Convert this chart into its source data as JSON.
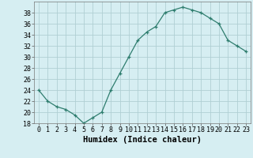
{
  "x": [
    0,
    1,
    2,
    3,
    4,
    5,
    6,
    7,
    8,
    9,
    10,
    11,
    12,
    13,
    14,
    15,
    16,
    17,
    18,
    19,
    20,
    21,
    22,
    23
  ],
  "y": [
    24,
    22,
    21,
    20.5,
    19.5,
    18,
    19,
    20,
    24,
    27,
    30,
    33,
    34.5,
    35.5,
    38,
    38.5,
    39,
    38.5,
    38,
    37,
    36,
    33,
    32,
    31
  ],
  "line_color": "#2e7d6e",
  "marker": "+",
  "bg_color": "#d6eef2",
  "grid_color": "#b0cfd4",
  "xlabel": "Humidex (Indice chaleur)",
  "xlim": [
    -0.5,
    23.5
  ],
  "ylim": [
    18,
    40
  ],
  "yticks": [
    18,
    20,
    22,
    24,
    26,
    28,
    30,
    32,
    34,
    36,
    38
  ],
  "xticks": [
    0,
    1,
    2,
    3,
    4,
    5,
    6,
    7,
    8,
    9,
    10,
    11,
    12,
    13,
    14,
    15,
    16,
    17,
    18,
    19,
    20,
    21,
    22,
    23
  ],
  "tick_fontsize": 6,
  "xlabel_fontsize": 7.5
}
